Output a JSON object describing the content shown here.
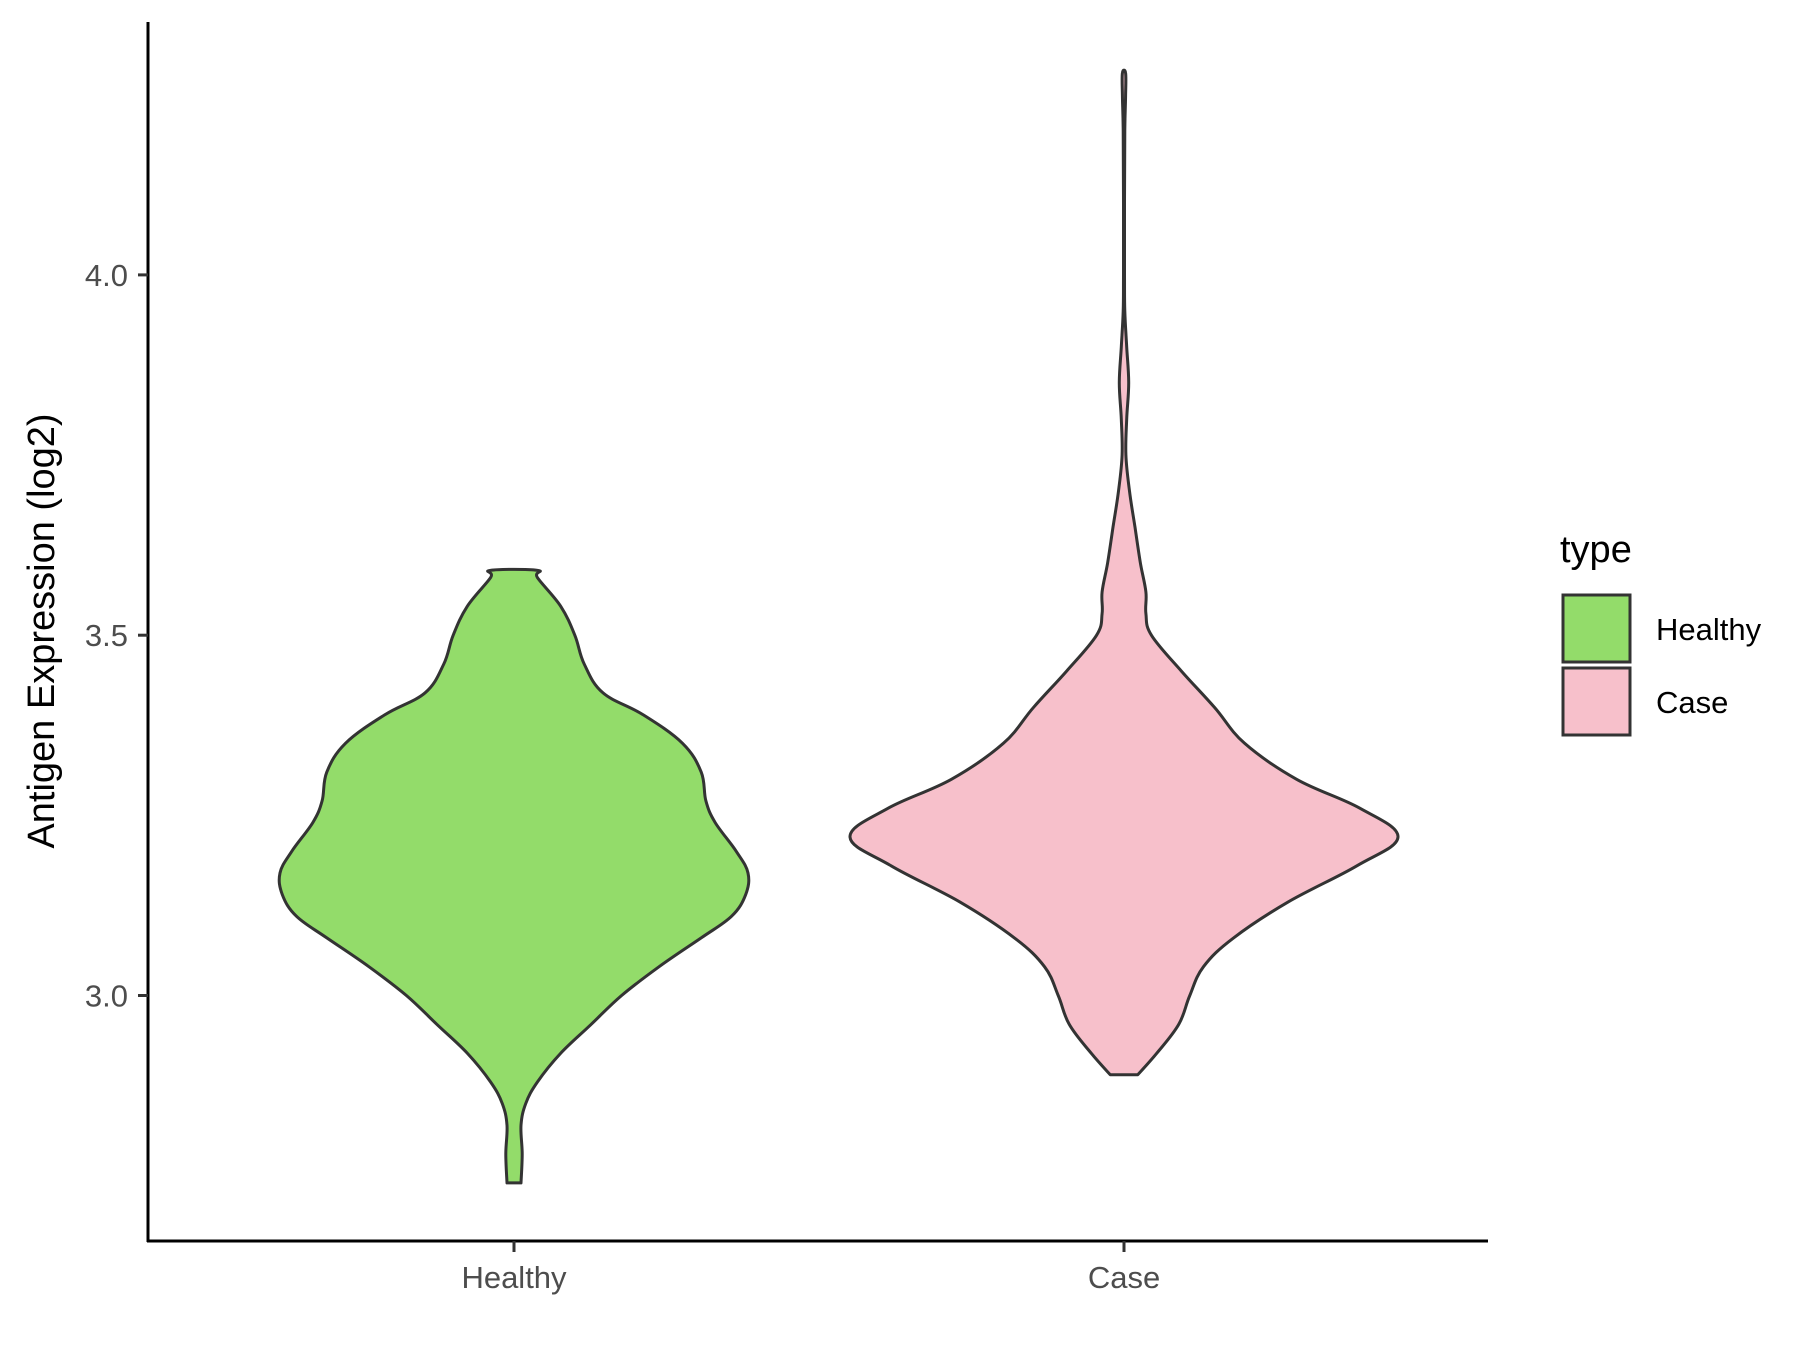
{
  "chart_data": {
    "type": "violin",
    "title": "",
    "xlabel": "",
    "ylabel": "Antigen Expression (log2)",
    "ylim": [
      2.65,
      4.35
    ],
    "yticks": [
      3.0,
      3.5,
      4.0
    ],
    "ytick_labels": [
      "3.0",
      "3.5",
      "4.0"
    ],
    "categories": [
      "Healthy",
      "Case"
    ],
    "grid": false,
    "legend": {
      "title": "type",
      "position": "right",
      "entries": [
        "Healthy",
        "Case"
      ]
    },
    "series": [
      {
        "name": "Healthy",
        "color": "#93DC6A",
        "min": 2.74,
        "max": 3.59,
        "density_profile": [
          [
            2.74,
            0.03
          ],
          [
            2.78,
            0.035
          ],
          [
            2.82,
            0.03
          ],
          [
            2.85,
            0.05
          ],
          [
            2.88,
            0.1
          ],
          [
            2.92,
            0.2
          ],
          [
            2.96,
            0.33
          ],
          [
            3.0,
            0.46
          ],
          [
            3.04,
            0.62
          ],
          [
            3.08,
            0.8
          ],
          [
            3.11,
            0.93
          ],
          [
            3.14,
            0.99
          ],
          [
            3.17,
            1.0
          ],
          [
            3.2,
            0.95
          ],
          [
            3.24,
            0.86
          ],
          [
            3.27,
            0.82
          ],
          [
            3.31,
            0.8
          ],
          [
            3.35,
            0.72
          ],
          [
            3.39,
            0.55
          ],
          [
            3.42,
            0.38
          ],
          [
            3.46,
            0.3
          ],
          [
            3.5,
            0.26
          ],
          [
            3.54,
            0.2
          ],
          [
            3.58,
            0.1
          ],
          [
            3.59,
            0.1
          ]
        ]
      },
      {
        "name": "Case",
        "color": "#F7C0CB",
        "min": 2.89,
        "max": 4.28,
        "density_profile": [
          [
            2.89,
            0.05
          ],
          [
            2.92,
            0.12
          ],
          [
            2.96,
            0.2
          ],
          [
            3.0,
            0.24
          ],
          [
            3.04,
            0.29
          ],
          [
            3.08,
            0.4
          ],
          [
            3.13,
            0.6
          ],
          [
            3.18,
            0.85
          ],
          [
            3.22,
            1.0
          ],
          [
            3.26,
            0.86
          ],
          [
            3.3,
            0.63
          ],
          [
            3.35,
            0.44
          ],
          [
            3.4,
            0.33
          ],
          [
            3.45,
            0.21
          ],
          [
            3.5,
            0.1
          ],
          [
            3.53,
            0.08
          ],
          [
            3.56,
            0.08
          ],
          [
            3.6,
            0.06
          ],
          [
            3.65,
            0.04
          ],
          [
            3.7,
            0.02
          ],
          [
            3.75,
            0.007
          ],
          [
            3.8,
            0.01
          ],
          [
            3.85,
            0.017
          ],
          [
            3.9,
            0.01
          ],
          [
            3.95,
            0.003
          ],
          [
            4.0,
            0.002
          ],
          [
            4.1,
            0.002
          ],
          [
            4.2,
            0.003
          ],
          [
            4.25,
            0.006
          ],
          [
            4.28,
            0.006
          ]
        ]
      }
    ]
  }
}
